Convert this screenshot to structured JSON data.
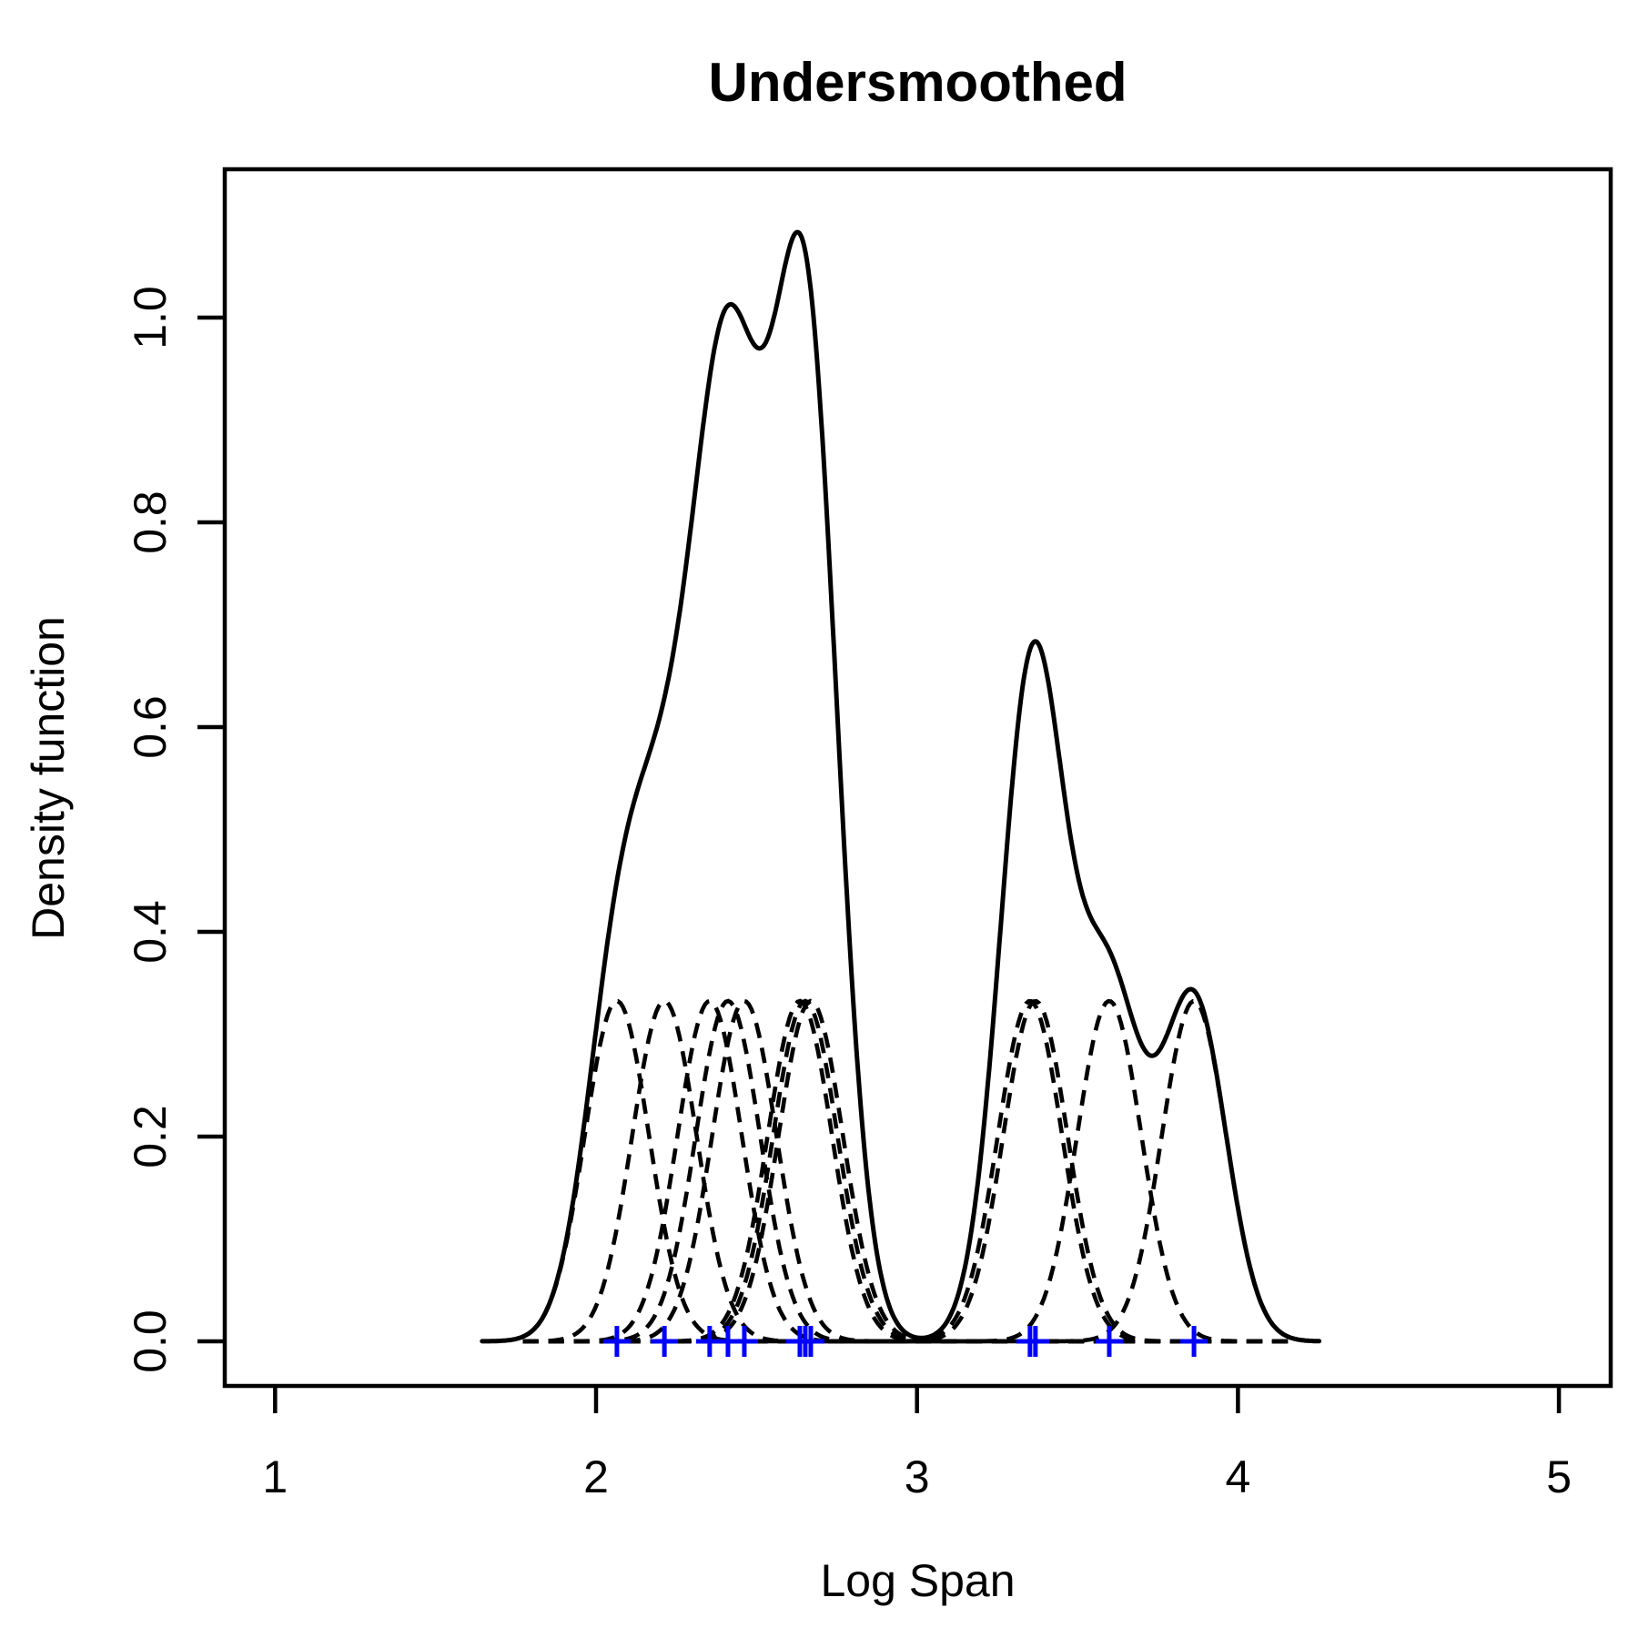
{
  "figure": {
    "background": "#ffffff",
    "foreground": "#000000"
  },
  "chart_data": {
    "type": "line",
    "title": "Undersmoothed",
    "xlabel": "Log Span",
    "ylabel": "Density function",
    "x_ticks": [
      1,
      2,
      3,
      4,
      5
    ],
    "y_ticks": [
      "0.0",
      "0.2",
      "0.4",
      "0.6",
      "0.8",
      "1.0"
    ],
    "y_tick_values": [
      0,
      0.2,
      0.4,
      0.6,
      0.8,
      1.0
    ],
    "xlim": [
      0.84,
      5.16
    ],
    "ylim": [
      -0.044,
      1.145
    ],
    "grid": false,
    "legend": "none",
    "data_points": [
      2.065,
      2.213,
      2.354,
      2.411,
      2.462,
      2.635,
      2.652,
      2.669,
      3.352,
      3.369,
      3.599,
      3.863
    ],
    "bandwidth": 0.1,
    "kernel_peak": 0.332,
    "series": [
      {
        "name": "density-estimate",
        "kind": "kde_sum",
        "style": "solid",
        "color": "#000000",
        "x_range": [
          1.645,
          4.253
        ]
      },
      {
        "name": "component-kernels",
        "kind": "kernels",
        "style": "dashed",
        "color": "#000000",
        "x_range": [
          1.772,
          4.163
        ]
      }
    ],
    "curve_features": {
      "peaks": [
        {
          "x": 2.41,
          "y": 1.01
        },
        {
          "x": 2.65,
          "y": 1.07
        },
        {
          "x": 3.36,
          "y": 0.68
        },
        {
          "x": 3.85,
          "y": 0.34
        }
      ],
      "local_minima": [
        {
          "x": 2.52,
          "y": 0.94
        },
        {
          "x": 3.05,
          "y": 0.0
        },
        {
          "x": 3.73,
          "y": 0.28
        }
      ]
    },
    "rug": {
      "marker": "plus",
      "color": "#0000FF",
      "y": 0
    }
  }
}
